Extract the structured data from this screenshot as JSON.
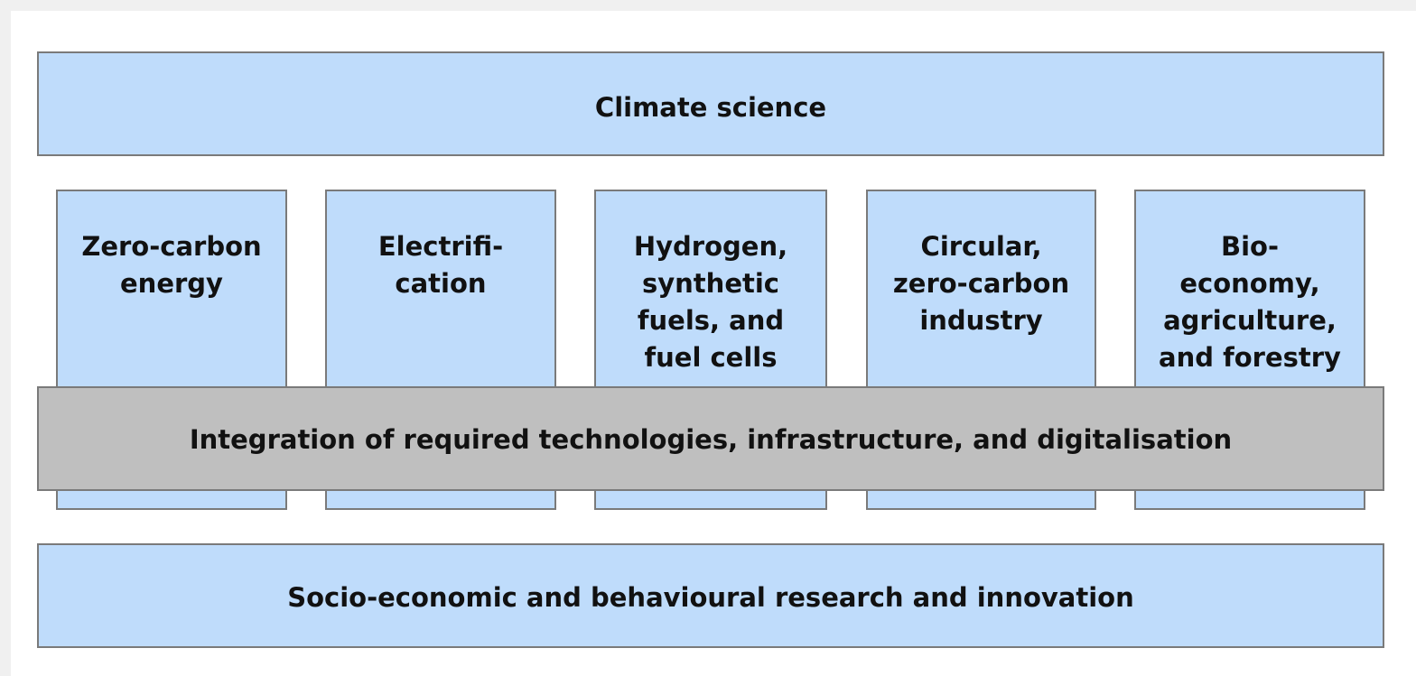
{
  "top": {
    "label": "Climate science"
  },
  "pillars": [
    {
      "lines": [
        "Zero-carbon",
        "energy"
      ]
    },
    {
      "lines": [
        "Electrifi-",
        "cation"
      ]
    },
    {
      "lines": [
        "Hydrogen,",
        "synthetic",
        "fuels, and",
        "fuel cells"
      ]
    },
    {
      "lines": [
        "Circular,",
        "zero-carbon",
        "industry"
      ]
    },
    {
      "lines": [
        "Bio-",
        "economy,",
        "agriculture,",
        "and forestry"
      ]
    }
  ],
  "integration": {
    "label": "Integration of required technologies, infrastructure, and digitalisation"
  },
  "bottom": {
    "label": "Socio-economic and behavioural research and innovation"
  }
}
